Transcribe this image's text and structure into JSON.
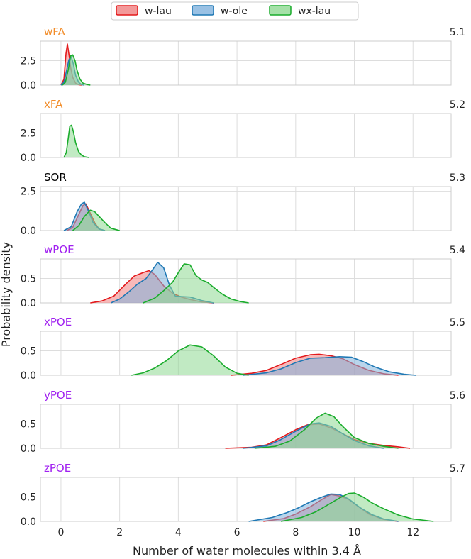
{
  "legend": {
    "placement": "top-center",
    "entries": [
      {
        "name": "w-lau",
        "stroke": "#e31a1c",
        "fill": "#f08080"
      },
      {
        "name": "w-ole",
        "stroke": "#1f78b4",
        "fill": "#7fb2dd"
      },
      {
        "name": "wx-lau",
        "stroke": "#1aac2c",
        "fill": "#8ed992"
      }
    ]
  },
  "shared_x_axis": {
    "label": "Number of water molecules within 3.4 Å",
    "range": [
      -0.7,
      13.3
    ],
    "ticks": [
      0,
      2,
      4,
      6,
      8,
      10,
      12
    ]
  },
  "y_axis_label": "Probability density",
  "chart_data": [
    {
      "type": "area",
      "panel_label": "wFA",
      "panel_label_color": "#f28c28",
      "section": "5.1",
      "ylim": [
        0,
        4.5
      ],
      "yticks": [
        0.0,
        2.5
      ],
      "series": [
        {
          "name": "w-lau",
          "x": [
            0.0,
            0.1,
            0.17,
            0.22,
            0.28,
            0.33,
            0.4,
            0.5,
            0.6,
            0.7
          ],
          "y": [
            0.0,
            0.6,
            3.2,
            4.2,
            3.0,
            1.8,
            0.8,
            0.2,
            0.05,
            0.0
          ]
        },
        {
          "name": "w-ole",
          "x": [
            0.0,
            0.1,
            0.2,
            0.27,
            0.35,
            0.42,
            0.5,
            0.6,
            0.7,
            0.8
          ],
          "y": [
            0.0,
            0.3,
            1.6,
            2.6,
            2.9,
            2.2,
            1.0,
            0.3,
            0.06,
            0.0
          ]
        },
        {
          "name": "wx-lau",
          "x": [
            0.05,
            0.15,
            0.25,
            0.33,
            0.4,
            0.48,
            0.55,
            0.65,
            0.75,
            0.9,
            1.0
          ],
          "y": [
            0.0,
            0.3,
            1.6,
            3.0,
            3.1,
            2.5,
            1.5,
            0.6,
            0.2,
            0.05,
            0.0
          ]
        }
      ]
    },
    {
      "type": "area",
      "panel_label": "xFA",
      "panel_label_color": "#f28c28",
      "section": "5.2",
      "ylim": [
        0,
        4.5
      ],
      "yticks": [
        0.0,
        2.5
      ],
      "series": [
        {
          "name": "wx-lau",
          "x": [
            0.1,
            0.18,
            0.25,
            0.3,
            0.36,
            0.42,
            0.5,
            0.6,
            0.7,
            0.8,
            0.95
          ],
          "y": [
            0.0,
            0.5,
            2.0,
            3.2,
            3.3,
            2.7,
            1.5,
            0.6,
            0.25,
            0.08,
            0.0
          ]
        }
      ]
    },
    {
      "type": "area",
      "panel_label": "SOR",
      "panel_label_color": "#000000",
      "section": "5.3",
      "ylim": [
        0,
        2.8
      ],
      "yticks": [
        0.0,
        2.5
      ],
      "series": [
        {
          "name": "w-lau",
          "x": [
            0.2,
            0.4,
            0.6,
            0.75,
            0.85,
            1.0,
            1.15,
            1.3,
            1.5
          ],
          "y": [
            0.0,
            0.2,
            1.0,
            1.6,
            1.7,
            1.1,
            0.5,
            0.1,
            0.0
          ]
        },
        {
          "name": "w-ole",
          "x": [
            0.1,
            0.35,
            0.55,
            0.7,
            0.8,
            0.95,
            1.1,
            1.3,
            1.5
          ],
          "y": [
            0.0,
            0.25,
            1.2,
            1.7,
            1.8,
            1.2,
            0.5,
            0.1,
            0.0
          ]
        },
        {
          "name": "wx-lau",
          "x": [
            0.4,
            0.6,
            0.8,
            1.0,
            1.15,
            1.3,
            1.5,
            1.7,
            2.0
          ],
          "y": [
            0.0,
            0.3,
            0.9,
            1.3,
            1.2,
            0.9,
            0.5,
            0.15,
            0.0
          ]
        }
      ]
    },
    {
      "type": "area",
      "panel_label": "wPOE",
      "panel_label_color": "#a020f0",
      "section": "5.4",
      "ylim": [
        0,
        0.9
      ],
      "yticks": [
        0.0,
        0.5
      ],
      "series": [
        {
          "name": "w-lau",
          "x": [
            1.0,
            1.4,
            1.8,
            2.2,
            2.5,
            2.8,
            3.0,
            3.2,
            3.5,
            3.8,
            4.1,
            4.4,
            4.8,
            5.2
          ],
          "y": [
            0.0,
            0.04,
            0.14,
            0.38,
            0.55,
            0.62,
            0.66,
            0.58,
            0.35,
            0.2,
            0.12,
            0.07,
            0.02,
            0.0
          ]
        },
        {
          "name": "w-ole",
          "x": [
            1.7,
            2.0,
            2.3,
            2.6,
            2.9,
            3.1,
            3.3,
            3.5,
            3.7,
            3.9,
            4.1,
            4.4,
            4.8,
            5.2
          ],
          "y": [
            0.0,
            0.08,
            0.22,
            0.38,
            0.5,
            0.66,
            0.83,
            0.72,
            0.36,
            0.14,
            0.13,
            0.12,
            0.05,
            0.0
          ]
        },
        {
          "name": "wx-lau",
          "x": [
            2.8,
            3.2,
            3.5,
            3.8,
            4.0,
            4.2,
            4.4,
            4.6,
            4.8,
            5.0,
            5.2,
            5.5,
            5.8,
            6.1,
            6.4
          ],
          "y": [
            0.0,
            0.1,
            0.25,
            0.42,
            0.62,
            0.8,
            0.78,
            0.56,
            0.47,
            0.42,
            0.32,
            0.18,
            0.08,
            0.03,
            0.0
          ]
        }
      ]
    },
    {
      "type": "area",
      "panel_label": "xPOE",
      "panel_label_color": "#a020f0",
      "section": "5.5",
      "ylim": [
        0,
        0.9
      ],
      "yticks": [
        0.0,
        0.5
      ],
      "series": [
        {
          "name": "w-lau",
          "x": [
            5.8,
            6.5,
            7.0,
            7.5,
            8.0,
            8.5,
            8.8,
            9.2,
            9.6,
            10.0,
            10.5,
            11.0,
            11.5
          ],
          "y": [
            0.0,
            0.04,
            0.1,
            0.22,
            0.35,
            0.42,
            0.43,
            0.4,
            0.34,
            0.22,
            0.1,
            0.03,
            0.0
          ]
        },
        {
          "name": "w-ole",
          "x": [
            6.2,
            7.0,
            7.5,
            8.0,
            8.5,
            9.0,
            9.5,
            9.9,
            10.3,
            10.7,
            11.2,
            11.7,
            12.1
          ],
          "y": [
            0.0,
            0.05,
            0.13,
            0.26,
            0.35,
            0.36,
            0.38,
            0.37,
            0.28,
            0.17,
            0.07,
            0.02,
            0.0
          ]
        },
        {
          "name": "wx-lau",
          "x": [
            2.4,
            2.8,
            3.2,
            3.6,
            4.0,
            4.4,
            4.8,
            5.2,
            5.6,
            6.0,
            6.4
          ],
          "y": [
            0.0,
            0.05,
            0.15,
            0.3,
            0.5,
            0.62,
            0.58,
            0.4,
            0.17,
            0.04,
            0.0
          ]
        }
      ]
    },
    {
      "type": "area",
      "panel_label": "yPOE",
      "panel_label_color": "#a020f0",
      "section": "5.6",
      "ylim": [
        0,
        0.9
      ],
      "yticks": [
        0.0,
        0.5
      ],
      "series": [
        {
          "name": "w-lau",
          "x": [
            5.6,
            6.5,
            7.0,
            7.5,
            8.0,
            8.4,
            8.8,
            9.2,
            9.6,
            10.0,
            10.5,
            11.0,
            11.5,
            11.9
          ],
          "y": [
            0.0,
            0.02,
            0.07,
            0.22,
            0.38,
            0.48,
            0.5,
            0.42,
            0.3,
            0.18,
            0.1,
            0.06,
            0.03,
            0.0
          ]
        },
        {
          "name": "w-ole",
          "x": [
            6.2,
            7.0,
            7.5,
            8.0,
            8.5,
            8.8,
            9.2,
            9.6,
            10.0,
            10.5,
            11.0
          ],
          "y": [
            0.0,
            0.05,
            0.18,
            0.35,
            0.5,
            0.52,
            0.45,
            0.3,
            0.16,
            0.05,
            0.0
          ]
        },
        {
          "name": "wx-lau",
          "x": [
            6.6,
            7.3,
            7.8,
            8.3,
            8.7,
            9.0,
            9.3,
            9.6,
            10.0,
            10.5,
            11.0,
            11.5
          ],
          "y": [
            0.0,
            0.04,
            0.15,
            0.38,
            0.62,
            0.72,
            0.65,
            0.45,
            0.22,
            0.1,
            0.04,
            0.0
          ]
        }
      ]
    },
    {
      "type": "area",
      "panel_label": "zPOE",
      "panel_label_color": "#a020f0",
      "section": "5.7",
      "ylim": [
        0,
        0.9
      ],
      "yticks": [
        0.0,
        0.5
      ],
      "series": [
        {
          "name": "w-lau",
          "x": [
            6.9,
            7.6,
            8.0,
            8.5,
            8.9,
            9.2,
            9.5,
            9.8,
            10.1,
            10.5,
            11.0,
            11.5
          ],
          "y": [
            0.0,
            0.06,
            0.15,
            0.3,
            0.45,
            0.55,
            0.52,
            0.45,
            0.32,
            0.15,
            0.04,
            0.0
          ]
        },
        {
          "name": "w-ole",
          "x": [
            6.4,
            7.2,
            7.7,
            8.1,
            8.5,
            8.9,
            9.2,
            9.5,
            9.8,
            10.2,
            10.6,
            11.0,
            11.5
          ],
          "y": [
            0.0,
            0.08,
            0.18,
            0.28,
            0.4,
            0.5,
            0.56,
            0.55,
            0.46,
            0.28,
            0.14,
            0.05,
            0.0
          ]
        },
        {
          "name": "wx-lau",
          "x": [
            7.5,
            8.2,
            8.7,
            9.1,
            9.5,
            9.8,
            10.0,
            10.3,
            10.6,
            11.0,
            11.5,
            12.0,
            12.7
          ],
          "y": [
            0.0,
            0.08,
            0.2,
            0.34,
            0.48,
            0.57,
            0.58,
            0.5,
            0.38,
            0.26,
            0.13,
            0.05,
            0.0
          ]
        }
      ]
    }
  ]
}
